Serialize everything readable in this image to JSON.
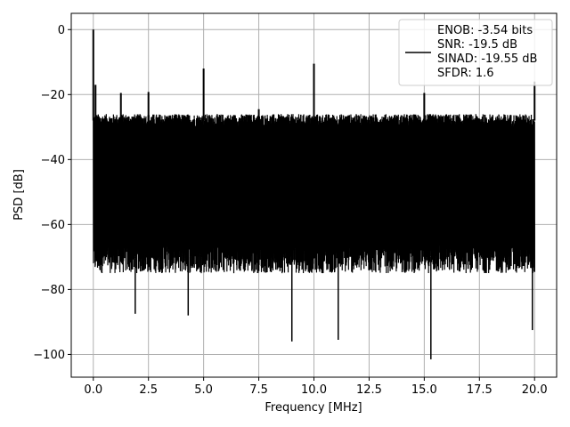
{
  "chart_data": {
    "type": "line",
    "xlabel": "Frequency [MHz]",
    "ylabel": "PSD [dB]",
    "xlim": [
      -1.0,
      21.0
    ],
    "ylim": [
      -107,
      5
    ],
    "xticks": [
      0.0,
      2.5,
      5.0,
      7.5,
      10.0,
      12.5,
      15.0,
      17.5,
      20.0
    ],
    "xtick_labels": [
      "0.0",
      "2.5",
      "5.0",
      "7.5",
      "10.0",
      "12.5",
      "15.0",
      "17.5",
      "20.0"
    ],
    "yticks": [
      0,
      -20,
      -40,
      -60,
      -80,
      -100
    ],
    "ytick_labels": [
      "0",
      "−20",
      "−40",
      "−60",
      "−80",
      "−100"
    ],
    "grid": true,
    "line_color": "#000000",
    "legend": {
      "placement": "upper right",
      "entries": [
        "ENOB: -3.54 bits",
        "SNR: -19.5 dB",
        "SINAD: -19.55 dB",
        "SFDR: 1.6"
      ]
    },
    "series": [
      {
        "x_range": [
          0,
          20
        ],
        "noise_top_approx": -28,
        "noise_floor_approx": -70,
        "spurs": [
          {
            "x": 0.0,
            "y": 0
          },
          {
            "x": 0.1,
            "y": -17
          },
          {
            "x": 1.25,
            "y": -19.5
          },
          {
            "x": 2.5,
            "y": -19.2
          },
          {
            "x": 5.0,
            "y": -12
          },
          {
            "x": 7.5,
            "y": -24.5
          },
          {
            "x": 10.0,
            "y": -10.5
          },
          {
            "x": 15.0,
            "y": -19.5
          },
          {
            "x": 20.0,
            "y": -16
          }
        ],
        "dips": [
          {
            "x": 1.9,
            "y": -87.5
          },
          {
            "x": 4.3,
            "y": -88
          },
          {
            "x": 9.0,
            "y": -96
          },
          {
            "x": 11.1,
            "y": -95.5
          },
          {
            "x": 15.3,
            "y": -101.5
          },
          {
            "x": 19.9,
            "y": -92.5
          }
        ]
      }
    ]
  }
}
